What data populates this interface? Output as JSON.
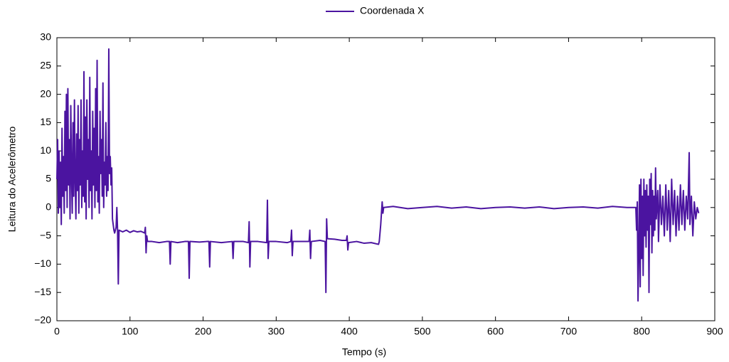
{
  "chart_data": {
    "type": "line",
    "xlabel": "Tempo (s)",
    "ylabel": "Leitura do Acelerômetro",
    "xlim": [
      0,
      900
    ],
    "xticks": [
      0,
      100,
      200,
      300,
      400,
      500,
      600,
      700,
      800,
      900
    ],
    "ylim": [
      -20,
      30
    ],
    "yticks": [
      {
        "value": -20,
        "label": "−20"
      },
      {
        "value": -15,
        "label": "−15"
      },
      {
        "value": -10,
        "label": "−10"
      },
      {
        "value": -5,
        "label": "−5"
      },
      0,
      5,
      10,
      15,
      20,
      25,
      30
    ],
    "legend": "top",
    "series": [
      {
        "name": "Coordenada X",
        "color": "#4b14a0",
        "x": [
          0,
          1,
          2,
          3,
          4,
          5,
          6,
          7,
          8,
          9,
          10,
          11,
          12,
          13,
          14,
          15,
          16,
          17,
          18,
          19,
          20,
          21,
          22,
          23,
          24,
          25,
          26,
          27,
          28,
          29,
          30,
          31,
          32,
          33,
          34,
          35,
          36,
          37,
          38,
          39,
          40,
          41,
          42,
          43,
          44,
          45,
          46,
          47,
          48,
          49,
          50,
          51,
          52,
          53,
          54,
          55,
          56,
          57,
          58,
          59,
          60,
          61,
          62,
          63,
          64,
          65,
          66,
          67,
          68,
          69,
          70,
          71,
          72,
          73,
          74,
          75,
          76,
          77,
          78,
          79,
          80,
          81,
          82,
          83,
          84,
          85,
          90,
          95,
          100,
          105,
          110,
          115,
          120,
          121,
          122,
          123,
          124,
          130,
          140,
          150,
          154,
          155,
          156,
          165,
          175,
          180,
          181,
          182,
          195,
          205,
          208,
          209,
          210,
          225,
          240,
          241,
          242,
          255,
          262,
          263,
          264,
          265,
          275,
          287,
          288,
          289,
          290,
          300,
          315,
          320,
          321,
          322,
          323,
          335,
          345,
          346,
          347,
          348,
          360,
          367,
          368,
          369,
          370,
          380,
          390,
          396,
          397,
          398,
          399,
          410,
          420,
          430,
          440,
          441,
          443,
          445,
          446,
          447,
          460,
          480,
          500,
          520,
          540,
          560,
          580,
          600,
          620,
          640,
          660,
          680,
          700,
          720,
          740,
          760,
          780,
          790,
          792,
          793,
          794,
          795,
          796,
          797,
          798,
          799,
          800,
          801,
          802,
          803,
          804,
          805,
          806,
          807,
          808,
          809,
          810,
          811,
          812,
          813,
          814,
          815,
          816,
          817,
          818,
          819,
          820,
          822,
          823,
          825,
          827,
          829,
          831,
          833,
          835,
          837,
          839,
          841,
          843,
          845,
          847,
          849,
          851,
          853,
          855,
          857,
          859,
          861,
          863,
          865,
          866,
          868,
          870,
          872,
          874,
          876,
          878
        ],
        "values": [
          5,
          12,
          -1,
          10,
          0,
          8,
          -3,
          14,
          2,
          9,
          -1,
          17,
          3,
          20,
          0,
          21,
          4,
          12,
          -2,
          18,
          6,
          -1,
          15,
          2,
          19,
          5,
          -2,
          13,
          3,
          18,
          -1,
          12,
          4,
          19,
          0,
          10,
          2,
          24,
          1,
          16,
          -2,
          19,
          5,
          12,
          0,
          23,
          3,
          10,
          -2,
          17,
          4,
          14,
          0,
          21,
          3,
          26,
          1,
          9,
          -1,
          17,
          6,
          12,
          2,
          22,
          0,
          8,
          4,
          15,
          2,
          9,
          3,
          28,
          6,
          9,
          4,
          7,
          -2,
          -3,
          -4,
          -4.5,
          -4,
          -3.5,
          0,
          -4,
          -13.5,
          -4,
          -4.3,
          -4,
          -4.4,
          -4.1,
          -4.3,
          -4.2,
          -4.5,
          -3.5,
          -8,
          -5,
          -6,
          -6,
          -6.2,
          -6,
          -6,
          -10,
          -6,
          -6.2,
          -6,
          -6,
          -12.5,
          -6,
          -6.1,
          -6,
          -6,
          -10.5,
          -6,
          -6.2,
          -6,
          -9,
          -6,
          -6,
          -6.2,
          -2.5,
          -10.5,
          -6,
          -6,
          -6.2,
          1.3,
          -9,
          -6,
          -6,
          -6.2,
          -6,
          -4,
          -8.5,
          -6,
          -6,
          -6,
          -4,
          -9,
          -6,
          -5.8,
          -6,
          -15,
          -2,
          -5.5,
          -5.6,
          -5.8,
          -5.8,
          -5,
          -7.5,
          -6.2,
          -6,
          -6.3,
          -6.2,
          -6.5,
          -6,
          -3,
          1,
          -1,
          0,
          0.2,
          -0.2,
          0,
          0.2,
          -0.1,
          0.1,
          -0.2,
          0,
          0.1,
          -0.1,
          0.1,
          -0.2,
          0,
          0.1,
          -0.1,
          0.2,
          0,
          0,
          0,
          -4,
          1,
          -16.5,
          -8,
          4,
          -14,
          5,
          -9,
          2,
          -12,
          5,
          -5,
          3,
          -7,
          4,
          -4,
          2,
          -15,
          5,
          -3,
          6,
          -8,
          3,
          -5,
          2,
          -4,
          7,
          -2,
          3,
          -6,
          4,
          -3,
          2,
          -5,
          4,
          -4,
          3,
          -6,
          5,
          -3,
          3,
          -5,
          2,
          -4,
          4,
          -3,
          3,
          -4,
          2,
          -2,
          9.7,
          -3,
          2,
          -5,
          1,
          -2,
          0,
          -1
        ]
      }
    ]
  }
}
